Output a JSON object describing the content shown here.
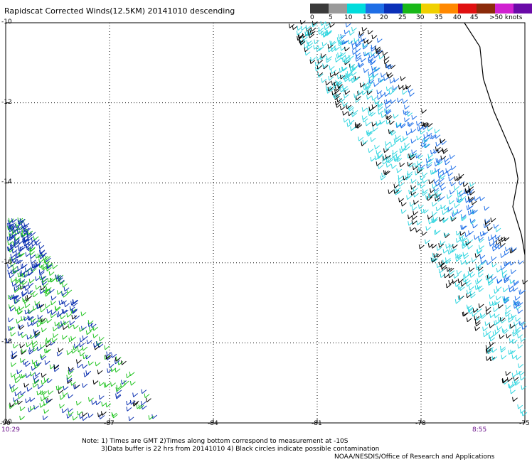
{
  "title": "Rapidscat Corrected Winds(12.5KM) 20141010 descending",
  "legend": {
    "labels": [
      "0",
      "5",
      "10",
      "15",
      "20",
      "25",
      "30",
      "35",
      "40",
      "45",
      ">50 knots"
    ],
    "colors": [
      "#3a3a3a",
      "#9a9a9a",
      "#00dcdc",
      "#1e6ee6",
      "#0a30b8",
      "#18b818",
      "#f0d000",
      "#ff8800",
      "#e01010",
      "#8b2a0a",
      "#d020d0",
      "#6a0aa8"
    ]
  },
  "axes": {
    "lon_labels": [
      "-90",
      "-87",
      "-84",
      "-81",
      "-78",
      "-75"
    ],
    "lat_labels": [
      "-10",
      "-12",
      "-14",
      "-16",
      "-18",
      "-20"
    ],
    "lon_values": [
      -90,
      -87,
      -84,
      -81,
      -78,
      -75
    ],
    "lat_values": [
      -10,
      -12,
      -14,
      -16,
      -18,
      -20
    ],
    "grid": "dotted"
  },
  "times": {
    "left": "10:29",
    "right": "8:55"
  },
  "notes": {
    "line1": "Note: 1) Times are GMT 2)Times along bottom correspond to measurement at -10S",
    "line2": "3)Data buffer is 22 hrs from 20141010 4) Black circles indicate possible contamination",
    "line3": "NOAA/NESDIS/Office of Research and Applications"
  },
  "wind_colors": {
    "calm": "#000000",
    "light": "#33d6e0",
    "moderate": "#1f6fe8",
    "strong": "#0a2fb0",
    "green": "#22c422"
  }
}
